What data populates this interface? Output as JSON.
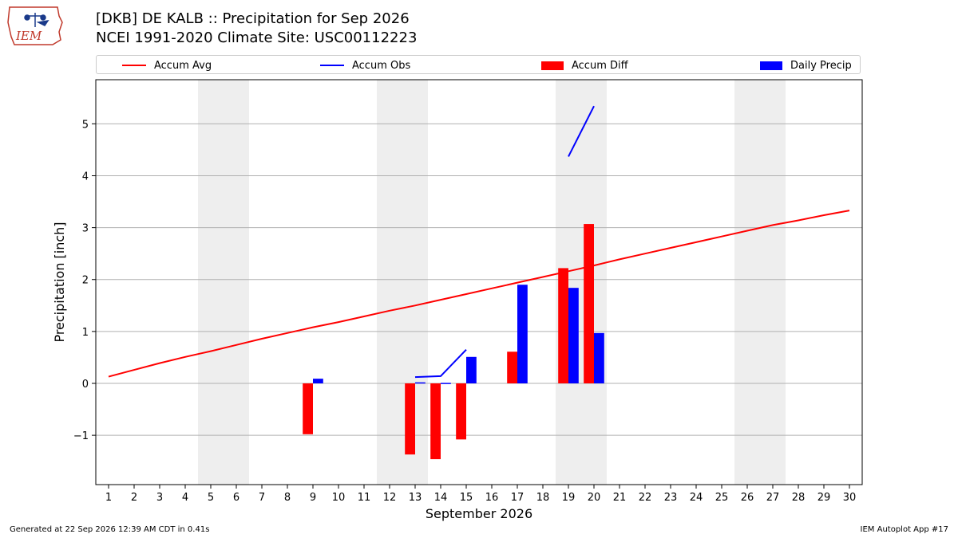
{
  "title": "[DKB] DE KALB :: Precipitation for Sep 2026",
  "subtitle": "NCEI 1991-2020 Climate Site: USC00112223",
  "logo_text": "IEM",
  "legend": [
    {
      "label": "Accum Avg",
      "kind": "line",
      "color": "#ff0000"
    },
    {
      "label": "Accum Obs",
      "kind": "line",
      "color": "#0000ff"
    },
    {
      "label": "Accum Diff",
      "kind": "patch",
      "color": "#ff0000"
    },
    {
      "label": "Daily Precip",
      "kind": "patch",
      "color": "#0000ff"
    }
  ],
  "footer": {
    "left": "Generated at 22 Sep 2026 12:39 AM CDT in 0.41s",
    "right": "IEM Autoplot App #17"
  },
  "chart_data": {
    "type": "bar",
    "xlabel": "September 2026",
    "ylabel": "Precipitation [inch]",
    "xlim": [
      0.5,
      30.5
    ],
    "ylim": [
      -1.95,
      5.85
    ],
    "x_ticks": [
      1,
      2,
      3,
      4,
      5,
      6,
      7,
      8,
      9,
      10,
      11,
      12,
      13,
      14,
      15,
      16,
      17,
      18,
      19,
      20,
      21,
      22,
      23,
      24,
      25,
      26,
      27,
      28,
      29,
      30
    ],
    "y_ticks": [
      -1,
      0,
      1,
      2,
      3,
      4,
      5
    ],
    "y_tick_labels": [
      "−1",
      "0",
      "1",
      "2",
      "3",
      "4",
      "5"
    ],
    "grid": "horizontal",
    "weekend_shading": [
      [
        4.5,
        6.5
      ],
      [
        11.5,
        13.5
      ],
      [
        18.5,
        20.5
      ],
      [
        25.5,
        27.5
      ]
    ],
    "accum_avg": {
      "color": "#ff0000",
      "x": [
        1,
        2,
        3,
        4,
        5,
        6,
        7,
        8,
        9,
        10,
        11,
        12,
        13,
        14,
        15,
        16,
        17,
        18,
        19,
        20,
        21,
        22,
        23,
        24,
        25,
        26,
        27,
        28,
        29,
        30
      ],
      "y": [
        0.13,
        0.26,
        0.39,
        0.51,
        0.62,
        0.74,
        0.86,
        0.97,
        1.08,
        1.18,
        1.29,
        1.4,
        1.5,
        1.61,
        1.72,
        1.83,
        1.94,
        2.05,
        2.16,
        2.27,
        2.39,
        2.5,
        2.61,
        2.72,
        2.83,
        2.94,
        3.05,
        3.14,
        3.24,
        3.33
      ]
    },
    "accum_obs_segments": [
      {
        "x": [
          13,
          14,
          15
        ],
        "y": [
          0.12,
          0.14,
          0.65
        ]
      },
      {
        "x": [
          19,
          20
        ],
        "y": [
          4.37,
          5.34
        ]
      }
    ],
    "accum_diff": {
      "color": "#ff0000",
      "x": [
        9,
        13,
        14,
        15,
        17,
        19,
        20
      ],
      "y": [
        -0.98,
        -1.37,
        -1.46,
        -1.08,
        0.61,
        2.22,
        3.07
      ]
    },
    "daily_precip": {
      "color": "#0000ff",
      "x": [
        9,
        13,
        14,
        15,
        17,
        19,
        20
      ],
      "y": [
        0.09,
        0.02,
        0.01,
        0.51,
        1.9,
        1.84,
        0.97
      ]
    }
  }
}
